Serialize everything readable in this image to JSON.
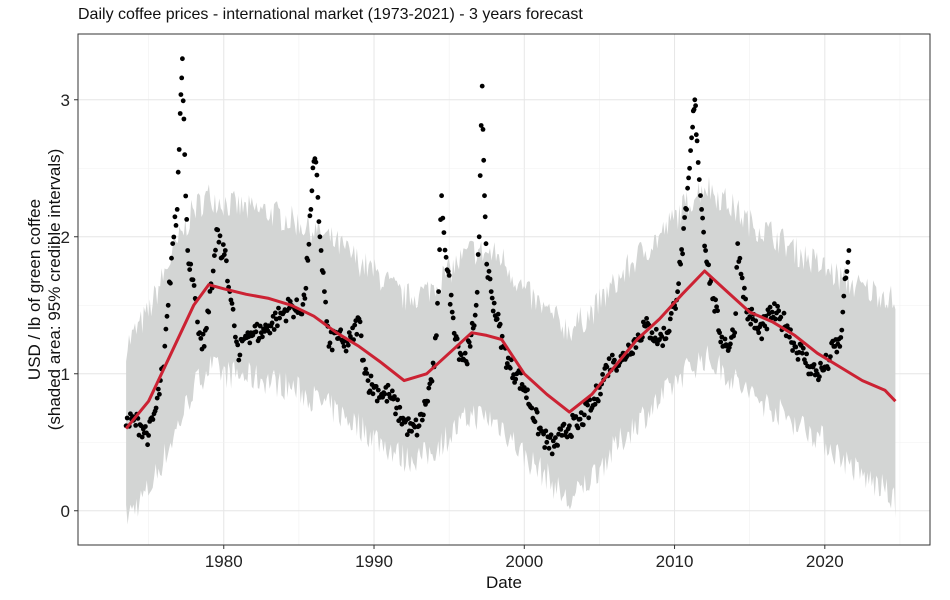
{
  "chart_data": {
    "type": "scatter",
    "title": "Daily coffee prices - international market (1973-2021) - 3 years forecast",
    "xlabel": "Date",
    "ylabel": "USD / lb of green coffee",
    "ylabel_line2": "(shaded area: 95% credible intervals)",
    "xlim": [
      1970.3,
      2027.0
    ],
    "ylim": [
      -0.25,
      3.48
    ],
    "x_ticks": [
      1980,
      1990,
      2000,
      2010,
      2020
    ],
    "x_tick_labels": [
      "1980",
      "1990",
      "2000",
      "2010",
      "2020"
    ],
    "y_ticks": [
      0,
      1,
      2,
      3
    ],
    "y_tick_labels": [
      "0",
      "1",
      "2",
      "3"
    ],
    "grid": true,
    "colors": {
      "observed": "#000000",
      "forecast": "#cc2233",
      "interval": "#d3d5d4",
      "grid": "#e6e6e6",
      "frame": "#333333"
    },
    "series": [
      {
        "kind": "observed_points",
        "x": [
          1973.5,
          1974.0,
          1974.5,
          1975.0,
          1975.5,
          1976.0,
          1976.3,
          1976.6,
          1976.9,
          1977.1,
          1977.25,
          1977.4,
          1977.6,
          1977.8,
          1978.1,
          1978.4,
          1978.7,
          1979.0,
          1979.3,
          1979.6,
          1979.9,
          1980.1,
          1980.4,
          1980.7,
          1981.0,
          1981.3,
          1981.6,
          1982.0,
          1982.5,
          1983.0,
          1983.5,
          1984.0,
          1984.5,
          1985.0,
          1985.4,
          1985.8,
          1986.0,
          1986.2,
          1986.4,
          1986.7,
          1987.0,
          1987.5,
          1988.0,
          1988.5,
          1989.0,
          1989.3,
          1989.6,
          1990.0,
          1990.5,
          1991.0,
          1991.5,
          1992.0,
          1992.5,
          1993.0,
          1993.5,
          1994.0,
          1994.3,
          1994.5,
          1994.8,
          1995.2,
          1995.6,
          1996.0,
          1996.4,
          1996.8,
          1997.0,
          1997.2,
          1997.35,
          1997.5,
          1997.8,
          1998.2,
          1998.6,
          1999.0,
          1999.5,
          2000.0,
          2000.5,
          2001.0,
          2001.5,
          2002.0,
          2002.5,
          2003.0,
          2003.5,
          2004.0,
          2004.5,
          2005.0,
          2005.5,
          2006.0,
          2006.5,
          2007.0,
          2007.5,
          2008.0,
          2008.5,
          2009.0,
          2009.5,
          2010.0,
          2010.4,
          2010.8,
          2011.0,
          2011.2,
          2011.35,
          2011.5,
          2011.8,
          2012.2,
          2012.6,
          2013.0,
          2013.5,
          2014.0,
          2014.2,
          2014.5,
          2014.8,
          2015.2,
          2015.6,
          2016.0,
          2016.5,
          2017.0,
          2017.5,
          2018.0,
          2018.5,
          2019.0,
          2019.5,
          2020.0,
          2020.3,
          2020.6,
          2021.0,
          2021.2,
          2021.4,
          2021.6
        ],
        "y": [
          0.62,
          0.66,
          0.62,
          0.55,
          0.75,
          1.05,
          1.5,
          1.95,
          2.2,
          2.9,
          3.3,
          2.6,
          1.9,
          1.8,
          1.55,
          1.3,
          1.2,
          1.45,
          1.75,
          2.05,
          1.85,
          1.9,
          1.6,
          1.35,
          1.1,
          1.25,
          1.3,
          1.3,
          1.3,
          1.35,
          1.4,
          1.45,
          1.5,
          1.45,
          1.55,
          2.2,
          2.55,
          2.45,
          2.0,
          1.6,
          1.2,
          1.3,
          1.2,
          1.25,
          1.4,
          1.1,
          0.95,
          0.9,
          0.85,
          0.85,
          0.75,
          0.65,
          0.58,
          0.62,
          0.8,
          1.05,
          1.6,
          2.3,
          1.85,
          1.45,
          1.2,
          1.1,
          1.2,
          1.5,
          2.0,
          3.1,
          2.3,
          1.8,
          1.6,
          1.4,
          1.2,
          1.05,
          1.0,
          0.9,
          0.75,
          0.6,
          0.5,
          0.47,
          0.55,
          0.62,
          0.62,
          0.7,
          0.75,
          0.9,
          1.05,
          1.1,
          1.1,
          1.2,
          1.25,
          1.35,
          1.3,
          1.25,
          1.3,
          1.5,
          1.8,
          2.2,
          2.5,
          2.8,
          3.0,
          2.7,
          2.2,
          1.8,
          1.55,
          1.3,
          1.2,
          1.3,
          1.95,
          1.7,
          1.45,
          1.4,
          1.3,
          1.35,
          1.45,
          1.4,
          1.35,
          1.2,
          1.15,
          1.05,
          1.0,
          1.05,
          1.1,
          1.2,
          1.2,
          1.45,
          1.7,
          1.9
        ]
      },
      {
        "kind": "forecast_median",
        "x": [
          1973.5,
          1975.0,
          1976.5,
          1978.0,
          1979.0,
          1980.0,
          1981.5,
          1983.0,
          1984.5,
          1986.0,
          1987.5,
          1989.0,
          1990.5,
          1992.0,
          1993.5,
          1995.0,
          1996.5,
          1997.5,
          1998.5,
          2000.0,
          2001.5,
          2003.0,
          2004.5,
          2006.0,
          2007.5,
          2009.0,
          2010.5,
          2012.0,
          2013.5,
          2015.0,
          2016.5,
          2018.0,
          2019.5,
          2021.0,
          2022.5,
          2024.0,
          2024.7
        ],
        "y": [
          0.6,
          0.8,
          1.15,
          1.5,
          1.65,
          1.62,
          1.58,
          1.55,
          1.5,
          1.42,
          1.3,
          1.2,
          1.08,
          0.95,
          1.0,
          1.15,
          1.3,
          1.28,
          1.25,
          1.0,
          0.85,
          0.72,
          0.85,
          1.05,
          1.25,
          1.4,
          1.58,
          1.75,
          1.6,
          1.45,
          1.38,
          1.28,
          1.15,
          1.05,
          0.95,
          0.88,
          0.8
        ]
      },
      {
        "kind": "credible_interval_95",
        "x": [
          1973.5,
          1975.0,
          1976.5,
          1978.0,
          1979.0,
          1980.0,
          1981.5,
          1983.0,
          1984.5,
          1986.0,
          1987.5,
          1989.0,
          1990.5,
          1992.0,
          1993.5,
          1995.0,
          1996.5,
          1997.5,
          1998.5,
          2000.0,
          2001.5,
          2003.0,
          2004.5,
          2006.0,
          2007.5,
          2009.0,
          2010.5,
          2012.0,
          2013.5,
          2015.0,
          2016.5,
          2018.0,
          2019.5,
          2021.0,
          2022.5,
          2024.0,
          2024.7
        ],
        "lower": [
          -0.05,
          0.15,
          0.5,
          0.9,
          1.05,
          1.0,
          0.98,
          0.95,
          0.9,
          0.82,
          0.72,
          0.62,
          0.5,
          0.38,
          0.4,
          0.55,
          0.7,
          0.68,
          0.62,
          0.4,
          0.25,
          0.05,
          0.25,
          0.45,
          0.65,
          0.8,
          1.0,
          1.12,
          1.0,
          0.85,
          0.75,
          0.65,
          0.55,
          0.4,
          0.25,
          0.15,
          0.05
        ],
        "upper": [
          1.2,
          1.45,
          1.85,
          2.2,
          2.3,
          2.25,
          2.2,
          2.18,
          2.12,
          2.05,
          1.95,
          1.82,
          1.7,
          1.55,
          1.6,
          1.75,
          1.9,
          1.88,
          1.85,
          1.6,
          1.45,
          1.32,
          1.45,
          1.65,
          1.85,
          2.0,
          2.2,
          2.38,
          2.25,
          2.1,
          2.02,
          1.9,
          1.8,
          1.7,
          1.62,
          1.58,
          1.52
        ]
      }
    ]
  }
}
